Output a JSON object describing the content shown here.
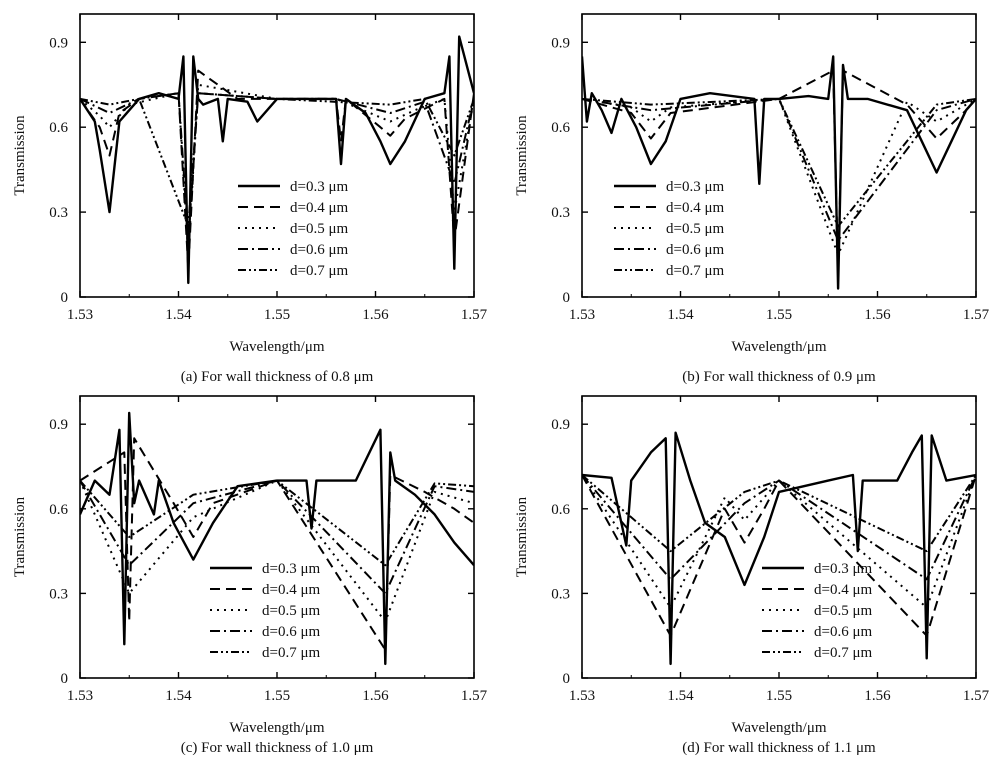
{
  "chart_data": [
    {
      "type": "line",
      "caption": "(a) For wall thickness of 0.8 μm",
      "xlabel": "Wavelength/μm",
      "ylabel": "Transmission",
      "xlim": [
        1.53,
        1.57
      ],
      "ylim": [
        0,
        1.0
      ],
      "xticks": [
        "1.53",
        "1.54",
        "1.55",
        "1.56",
        "1.57"
      ],
      "yticks": [
        "0",
        "0.3",
        "0.6",
        "0.9"
      ],
      "legend_position": "lower-center",
      "grid": false,
      "series": [
        {
          "name": "d=0.3 μm",
          "x": [
            1.53,
            1.5315,
            1.532,
            1.533,
            1.534,
            1.536,
            1.538,
            1.54,
            1.5405,
            1.541,
            1.5415,
            1.542,
            1.5425,
            1.544,
            1.5445,
            1.545,
            1.547,
            1.548,
            1.55,
            1.553,
            1.556,
            1.5565,
            1.557,
            1.559,
            1.5605,
            1.5615,
            1.563,
            1.565,
            1.567,
            1.5675,
            1.568,
            1.5685,
            1.57
          ],
          "y": [
            0.7,
            0.62,
            0.52,
            0.3,
            0.62,
            0.7,
            0.72,
            0.7,
            0.85,
            0.05,
            0.85,
            0.7,
            0.68,
            0.7,
            0.55,
            0.7,
            0.69,
            0.62,
            0.7,
            0.7,
            0.7,
            0.47,
            0.7,
            0.65,
            0.55,
            0.47,
            0.55,
            0.7,
            0.72,
            0.85,
            0.1,
            0.92,
            0.72
          ]
        },
        {
          "name": "d=0.4 μm",
          "x": [
            1.53,
            1.532,
            1.533,
            1.534,
            1.536,
            1.54,
            1.541,
            1.542,
            1.546,
            1.55,
            1.556,
            1.5565,
            1.557,
            1.5605,
            1.5615,
            1.563,
            1.567,
            1.568,
            1.57
          ],
          "y": [
            0.7,
            0.6,
            0.5,
            0.65,
            0.7,
            0.72,
            0.1,
            0.8,
            0.7,
            0.7,
            0.7,
            0.55,
            0.7,
            0.6,
            0.57,
            0.63,
            0.7,
            0.2,
            0.72
          ]
        },
        {
          "name": "d=0.5 μm",
          "x": [
            1.53,
            1.532,
            1.533,
            1.535,
            1.54,
            1.541,
            1.542,
            1.55,
            1.556,
            1.5615,
            1.564,
            1.567,
            1.568,
            1.57
          ],
          "y": [
            0.7,
            0.64,
            0.6,
            0.68,
            0.72,
            0.15,
            0.75,
            0.7,
            0.7,
            0.62,
            0.66,
            0.7,
            0.3,
            0.7
          ]
        },
        {
          "name": "d=0.6 μm",
          "x": [
            1.53,
            1.533,
            1.536,
            1.54,
            1.541,
            1.542,
            1.55,
            1.556,
            1.5615,
            1.565,
            1.568,
            1.57
          ],
          "y": [
            0.7,
            0.65,
            0.7,
            0.72,
            0.2,
            0.72,
            0.7,
            0.7,
            0.65,
            0.69,
            0.4,
            0.7
          ]
        },
        {
          "name": "d=0.7 μm",
          "x": [
            1.53,
            1.533,
            1.536,
            1.541,
            1.542,
            1.55,
            1.5615,
            1.565,
            1.568,
            1.57
          ],
          "y": [
            0.7,
            0.68,
            0.7,
            0.25,
            0.72,
            0.7,
            0.68,
            0.7,
            0.5,
            0.7
          ]
        }
      ]
    },
    {
      "type": "line",
      "caption": "(b) For wall thickness of 0.9 μm",
      "xlabel": "Wavelength/μm",
      "ylabel": "Transmission",
      "xlim": [
        1.53,
        1.57
      ],
      "ylim": [
        0,
        1.0
      ],
      "xticks": [
        "1.53",
        "1.54",
        "1.55",
        "1.56",
        "1.57"
      ],
      "yticks": [
        "0",
        "0.3",
        "0.6",
        "0.9"
      ],
      "legend_position": "lower-left",
      "grid": false,
      "series": [
        {
          "name": "d=0.3 μm",
          "x": [
            1.53,
            1.5305,
            1.531,
            1.532,
            1.533,
            1.534,
            1.5355,
            1.537,
            1.5385,
            1.54,
            1.543,
            1.5475,
            1.548,
            1.5485,
            1.55,
            1.553,
            1.555,
            1.5555,
            1.556,
            1.5565,
            1.557,
            1.559,
            1.563,
            1.5645,
            1.566,
            1.5675,
            1.569,
            1.57
          ],
          "y": [
            0.85,
            0.62,
            0.72,
            0.66,
            0.58,
            0.7,
            0.6,
            0.47,
            0.55,
            0.7,
            0.72,
            0.7,
            0.4,
            0.7,
            0.7,
            0.71,
            0.7,
            0.85,
            0.03,
            0.82,
            0.7,
            0.7,
            0.66,
            0.55,
            0.44,
            0.55,
            0.66,
            0.7
          ]
        },
        {
          "name": "d=0.4 μm",
          "x": [
            1.53,
            1.535,
            1.537,
            1.539,
            1.55,
            1.5555,
            1.556,
            1.5565,
            1.563,
            1.566,
            1.569,
            1.57
          ],
          "y": [
            0.7,
            0.65,
            0.56,
            0.65,
            0.7,
            0.8,
            0.08,
            0.8,
            0.68,
            0.56,
            0.66,
            0.7
          ]
        },
        {
          "name": "d=0.5 μm",
          "x": [
            1.53,
            1.535,
            1.537,
            1.539,
            1.55,
            1.556,
            1.563,
            1.566,
            1.569,
            1.57
          ],
          "y": [
            0.7,
            0.67,
            0.62,
            0.67,
            0.7,
            0.15,
            0.69,
            0.62,
            0.68,
            0.7
          ]
        },
        {
          "name": "d=0.6 μm",
          "x": [
            1.53,
            1.537,
            1.55,
            1.556,
            1.566,
            1.57
          ],
          "y": [
            0.7,
            0.66,
            0.7,
            0.2,
            0.66,
            0.7
          ]
        },
        {
          "name": "d=0.7 μm",
          "x": [
            1.53,
            1.537,
            1.55,
            1.556,
            1.566,
            1.57
          ],
          "y": [
            0.7,
            0.68,
            0.7,
            0.25,
            0.68,
            0.7
          ]
        }
      ]
    },
    {
      "type": "line",
      "caption": "(c) For wall thickness of 1.0 μm",
      "xlabel": "Wavelength/μm",
      "ylabel": "Transmission",
      "xlim": [
        1.53,
        1.57
      ],
      "ylim": [
        0,
        1.0
      ],
      "xticks": [
        "1.53",
        "1.54",
        "1.55",
        "1.56",
        "1.57"
      ],
      "yticks": [
        "0",
        "0.3",
        "0.6",
        "0.9"
      ],
      "legend_position": "lower-center",
      "grid": false,
      "series": [
        {
          "name": "d=0.3 μm",
          "x": [
            1.53,
            1.5315,
            1.533,
            1.534,
            1.5345,
            1.535,
            1.5355,
            1.536,
            1.5375,
            1.538,
            1.5395,
            1.5415,
            1.5435,
            1.546,
            1.55,
            1.553,
            1.5535,
            1.554,
            1.558,
            1.5605,
            1.561,
            1.5615,
            1.562,
            1.564,
            1.566,
            1.568,
            1.57
          ],
          "y": [
            0.58,
            0.7,
            0.65,
            0.88,
            0.12,
            0.94,
            0.62,
            0.7,
            0.58,
            0.7,
            0.55,
            0.42,
            0.55,
            0.68,
            0.7,
            0.7,
            0.53,
            0.7,
            0.7,
            0.88,
            0.05,
            0.8,
            0.7,
            0.65,
            0.58,
            0.48,
            0.4
          ]
        },
        {
          "name": "d=0.4 μm",
          "x": [
            1.53,
            1.5345,
            1.535,
            1.5355,
            1.5395,
            1.5415,
            1.5435,
            1.55,
            1.561,
            1.5615,
            1.565,
            1.568,
            1.57
          ],
          "y": [
            0.7,
            0.8,
            0.2,
            0.85,
            0.62,
            0.5,
            0.62,
            0.7,
            0.1,
            0.72,
            0.66,
            0.6,
            0.55
          ]
        },
        {
          "name": "d=0.5 μm",
          "x": [
            1.53,
            1.535,
            1.5415,
            1.55,
            1.561,
            1.566,
            1.57
          ],
          "y": [
            0.7,
            0.3,
            0.57,
            0.7,
            0.2,
            0.66,
            0.62
          ]
        },
        {
          "name": "d=0.6 μm",
          "x": [
            1.53,
            1.535,
            1.5415,
            1.55,
            1.561,
            1.566,
            1.57
          ],
          "y": [
            0.7,
            0.4,
            0.62,
            0.7,
            0.3,
            0.68,
            0.66
          ]
        },
        {
          "name": "d=0.7 μm",
          "x": [
            1.53,
            1.535,
            1.5415,
            1.55,
            1.561,
            1.566,
            1.57
          ],
          "y": [
            0.7,
            0.5,
            0.65,
            0.7,
            0.4,
            0.69,
            0.68
          ]
        }
      ]
    },
    {
      "type": "line",
      "caption": "(d) For wall thickness of 1.1 μm",
      "xlabel": "Wavelength/μm",
      "ylabel": "Transmission",
      "xlim": [
        1.53,
        1.57
      ],
      "ylim": [
        0,
        1.0
      ],
      "xticks": [
        "1.53",
        "1.54",
        "1.55",
        "1.56",
        "1.57"
      ],
      "yticks": [
        "0",
        "0.3",
        "0.6",
        "0.9"
      ],
      "legend_position": "lower-right",
      "grid": false,
      "series": [
        {
          "name": "d=0.3 μm",
          "x": [
            1.53,
            1.533,
            1.5345,
            1.535,
            1.537,
            1.5385,
            1.539,
            1.5395,
            1.541,
            1.5425,
            1.5445,
            1.5465,
            1.5485,
            1.55,
            1.555,
            1.5575,
            1.558,
            1.5585,
            1.562,
            1.5635,
            1.5645,
            1.565,
            1.5655,
            1.567,
            1.57
          ],
          "y": [
            0.72,
            0.71,
            0.47,
            0.7,
            0.8,
            0.85,
            0.05,
            0.87,
            0.7,
            0.55,
            0.5,
            0.33,
            0.5,
            0.66,
            0.7,
            0.72,
            0.45,
            0.7,
            0.7,
            0.8,
            0.86,
            0.07,
            0.86,
            0.7,
            0.72
          ]
        },
        {
          "name": "d=0.4 μm",
          "x": [
            1.53,
            1.539,
            1.5445,
            1.5465,
            1.5485,
            1.55,
            1.565,
            1.57
          ],
          "y": [
            0.72,
            0.15,
            0.6,
            0.48,
            0.6,
            0.7,
            0.15,
            0.72
          ]
        },
        {
          "name": "d=0.5 μm",
          "x": [
            1.53,
            1.539,
            1.5445,
            1.5465,
            1.5485,
            1.55,
            1.565,
            1.57
          ],
          "y": [
            0.72,
            0.25,
            0.64,
            0.56,
            0.64,
            0.7,
            0.25,
            0.72
          ]
        },
        {
          "name": "d=0.6 μm",
          "x": [
            1.53,
            1.539,
            1.5465,
            1.55,
            1.565,
            1.57
          ],
          "y": [
            0.72,
            0.35,
            0.62,
            0.7,
            0.35,
            0.72
          ]
        },
        {
          "name": "d=0.7 μm",
          "x": [
            1.53,
            1.539,
            1.5465,
            1.55,
            1.565,
            1.57
          ],
          "y": [
            0.72,
            0.45,
            0.66,
            0.7,
            0.45,
            0.72
          ]
        }
      ]
    }
  ]
}
